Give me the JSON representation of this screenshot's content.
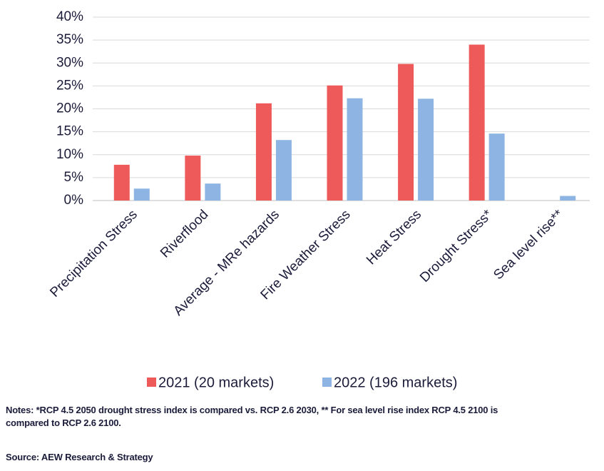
{
  "chart_data": {
    "type": "bar",
    "categories": [
      "Precipitation Stress",
      "Riverflood",
      "Average - MRe hazards",
      "Fire Weather Stress",
      "Heat Stress",
      "Drought Stress*",
      "Sea level rise**"
    ],
    "series": [
      {
        "name": "2021 (20 markets)",
        "color": "#ee5a5a",
        "values": [
          7.8,
          9.8,
          21.2,
          25.1,
          29.8,
          34.0,
          null
        ]
      },
      {
        "name": "2022 (196 markets)",
        "color": "#8db4e2",
        "values": [
          2.6,
          3.7,
          13.2,
          22.3,
          22.2,
          14.6,
          1.0
        ]
      }
    ],
    "ylim": [
      0,
      40
    ],
    "yticks": [
      {
        "value": 0,
        "label": "0%"
      },
      {
        "value": 5,
        "label": "5%"
      },
      {
        "value": 10,
        "label": "10%"
      },
      {
        "value": 15,
        "label": "15%"
      },
      {
        "value": 20,
        "label": "20%"
      },
      {
        "value": 25,
        "label": "25%"
      },
      {
        "value": 30,
        "label": "30%"
      },
      {
        "value": 35,
        "label": "35%"
      },
      {
        "value": 40,
        "label": "40%"
      }
    ],
    "grid": true,
    "notes": "Notes: *RCP 4.5 2050 drought stress index is compared vs. RCP 2.6 2030, ** For sea level rise index RCP 4.5 2100 is compared to RCP 2.6 2100.",
    "source": "Source: AEW Research & Strategy"
  }
}
